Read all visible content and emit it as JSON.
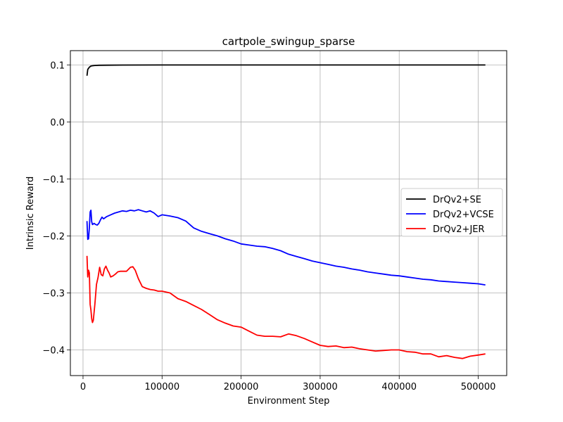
{
  "chart_data": {
    "type": "line",
    "title": "cartpole_swingup_sparse",
    "xlabel": "Environment Step",
    "ylabel": "Intrinsic  Reward",
    "xlim": [
      -16000,
      536000
    ],
    "ylim": [
      -0.445,
      0.125
    ],
    "xticks": [
      0,
      100000,
      200000,
      300000,
      400000,
      500000
    ],
    "xtick_labels": [
      "0",
      "100000",
      "200000",
      "300000",
      "400000",
      "500000"
    ],
    "yticks": [
      0.1,
      0.0,
      -0.1,
      -0.2,
      -0.3,
      -0.4
    ],
    "ytick_labels": [
      "0.1",
      "0.0",
      "−0.1",
      "−0.2",
      "−0.3",
      "−0.4"
    ],
    "grid": true,
    "legend": "center-right",
    "series": [
      {
        "name": "DrQv2+SE",
        "color": "#000000",
        "x": [
          5000,
          6000,
          8000,
          10000,
          12000,
          15000,
          20000,
          30000,
          50000,
          100000,
          200000,
          300000,
          400000,
          509000
        ],
        "y": [
          0.081,
          0.092,
          0.096,
          0.098,
          0.0985,
          0.099,
          0.0993,
          0.0995,
          0.0997,
          0.0998,
          0.0998,
          0.0998,
          0.0998,
          0.0998
        ]
      },
      {
        "name": "DrQv2+VCSE",
        "color": "#0000ff",
        "x": [
          5000,
          6000,
          7000,
          8000,
          9000,
          10000,
          11000,
          12000,
          14000,
          16000,
          18000,
          20000,
          22000,
          24000,
          26000,
          30000,
          35000,
          40000,
          45000,
          50000,
          55000,
          60000,
          65000,
          70000,
          75000,
          80000,
          85000,
          90000,
          95000,
          100000,
          110000,
          120000,
          130000,
          140000,
          150000,
          160000,
          170000,
          180000,
          190000,
          200000,
          210000,
          220000,
          230000,
          240000,
          250000,
          260000,
          270000,
          280000,
          290000,
          300000,
          310000,
          320000,
          330000,
          340000,
          350000,
          360000,
          370000,
          380000,
          390000,
          400000,
          410000,
          420000,
          430000,
          440000,
          450000,
          460000,
          470000,
          480000,
          490000,
          500000,
          509000
        ],
        "y": [
          -0.174,
          -0.206,
          -0.205,
          -0.185,
          -0.158,
          -0.155,
          -0.175,
          -0.18,
          -0.178,
          -0.18,
          -0.181,
          -0.178,
          -0.172,
          -0.167,
          -0.17,
          -0.166,
          -0.163,
          -0.16,
          -0.158,
          -0.156,
          -0.157,
          -0.155,
          -0.156,
          -0.154,
          -0.156,
          -0.158,
          -0.156,
          -0.16,
          -0.166,
          -0.163,
          -0.165,
          -0.168,
          -0.174,
          -0.186,
          -0.192,
          -0.196,
          -0.2,
          -0.205,
          -0.209,
          -0.214,
          -0.216,
          -0.218,
          -0.219,
          -0.222,
          -0.226,
          -0.232,
          -0.236,
          -0.24,
          -0.244,
          -0.247,
          -0.25,
          -0.253,
          -0.255,
          -0.258,
          -0.26,
          -0.263,
          -0.265,
          -0.267,
          -0.269,
          -0.27,
          -0.272,
          -0.274,
          -0.276,
          -0.277,
          -0.279,
          -0.28,
          -0.281,
          -0.282,
          -0.283,
          -0.284,
          -0.286
        ]
      },
      {
        "name": "DrQv2+JER",
        "color": "#ff0000",
        "x": [
          5000,
          6000,
          7000,
          8000,
          9000,
          10000,
          11000,
          12000,
          13000,
          15000,
          17000,
          19000,
          21000,
          23000,
          25000,
          27000,
          29000,
          31000,
          33000,
          35000,
          38000,
          41000,
          44000,
          47000,
          50000,
          55000,
          60000,
          63000,
          66000,
          70000,
          75000,
          80000,
          85000,
          90000,
          95000,
          100000,
          110000,
          120000,
          130000,
          140000,
          150000,
          160000,
          170000,
          180000,
          190000,
          200000,
          210000,
          220000,
          230000,
          240000,
          250000,
          260000,
          270000,
          280000,
          290000,
          300000,
          310000,
          320000,
          330000,
          340000,
          350000,
          360000,
          370000,
          380000,
          390000,
          400000,
          410000,
          420000,
          430000,
          440000,
          450000,
          460000,
          470000,
          480000,
          490000,
          500000,
          509000
        ],
        "y": [
          -0.235,
          -0.272,
          -0.26,
          -0.265,
          -0.32,
          -0.33,
          -0.345,
          -0.352,
          -0.348,
          -0.32,
          -0.285,
          -0.273,
          -0.255,
          -0.268,
          -0.27,
          -0.258,
          -0.253,
          -0.26,
          -0.265,
          -0.272,
          -0.27,
          -0.267,
          -0.263,
          -0.262,
          -0.262,
          -0.262,
          -0.255,
          -0.254,
          -0.26,
          -0.275,
          -0.289,
          -0.292,
          -0.294,
          -0.295,
          -0.297,
          -0.297,
          -0.3,
          -0.31,
          -0.315,
          -0.322,
          -0.329,
          -0.338,
          -0.347,
          -0.353,
          -0.358,
          -0.36,
          -0.367,
          -0.374,
          -0.376,
          -0.376,
          -0.377,
          -0.372,
          -0.375,
          -0.38,
          -0.386,
          -0.392,
          -0.394,
          -0.393,
          -0.396,
          -0.395,
          -0.398,
          -0.4,
          -0.402,
          -0.401,
          -0.4,
          -0.4,
          -0.403,
          -0.404,
          -0.407,
          -0.407,
          -0.412,
          -0.41,
          -0.413,
          -0.415,
          -0.411,
          -0.409,
          -0.407
        ]
      }
    ]
  }
}
